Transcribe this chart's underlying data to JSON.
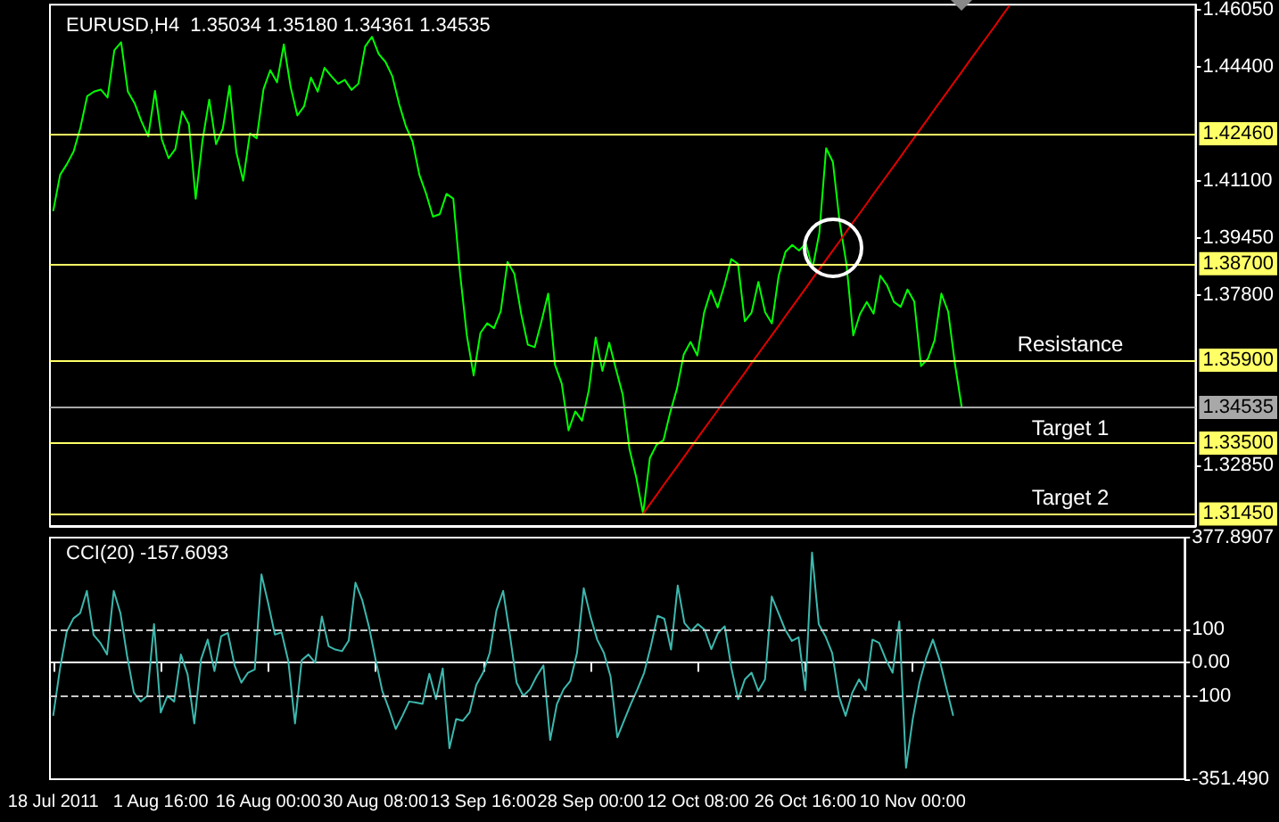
{
  "chart_data": [
    {
      "type": "line",
      "title": "EURUSD,H4  1.35034 1.35180 1.34361 1.34535",
      "categories": [
        null,
        null,
        null,
        null,
        null,
        null,
        null,
        null,
        null,
        null,
        null,
        null,
        null,
        null,
        null,
        null,
        null,
        null,
        null,
        null,
        null,
        null,
        null,
        null,
        null,
        null,
        null,
        null,
        null,
        null,
        null,
        null,
        null,
        null,
        null,
        null,
        null,
        null,
        null,
        null,
        null,
        null,
        null,
        null,
        null,
        null,
        null,
        null,
        null,
        null,
        null,
        null,
        null,
        null,
        null,
        null,
        null,
        null,
        null,
        null,
        null,
        null,
        null,
        null,
        null,
        null,
        null,
        null,
        null,
        null,
        null,
        null,
        null,
        null,
        null,
        null,
        null,
        null,
        null,
        null,
        null,
        null,
        null,
        null,
        null,
        null,
        null,
        null,
        null,
        null,
        null,
        null,
        null,
        null,
        null,
        null,
        null,
        null,
        null,
        null,
        null,
        null,
        null,
        null,
        null,
        null,
        null,
        null,
        null,
        null,
        null,
        null,
        null,
        null,
        null,
        null,
        null,
        null,
        null,
        null,
        null,
        null,
        null,
        null,
        null,
        null,
        null,
        null,
        null,
        null,
        null,
        null,
        null,
        null,
        null,
        null,
        null,
        null,
        null,
        null,
        null,
        null,
        null,
        null,
        null,
        null,
        null,
        null,
        null,
        null,
        null,
        null,
        null,
        null,
        null,
        null,
        null,
        null,
        null,
        null,
        null,
        null,
        null,
        null,
        null,
        null,
        null,
        null,
        null
      ],
      "series": [
        {
          "color": "#00ff00",
          "values": [
            1.4024,
            1.4127,
            1.4158,
            1.4195,
            1.4264,
            1.4355,
            1.4368,
            1.4374,
            1.4351,
            1.4488,
            1.4511,
            1.4368,
            1.4334,
            1.4282,
            1.4239,
            1.437,
            1.423,
            1.4175,
            1.4202,
            1.4311,
            1.4273,
            1.4058,
            1.4226,
            1.4345,
            1.4216,
            1.4261,
            1.4385,
            1.4192,
            1.411,
            1.4247,
            1.4233,
            1.4375,
            1.443,
            1.4395,
            1.4505,
            1.4382,
            1.4299,
            1.4326,
            1.4409,
            1.4368,
            1.4437,
            1.4413,
            1.4391,
            1.4402,
            1.4373,
            1.4391,
            1.4499,
            1.4527,
            1.4477,
            1.4454,
            1.4413,
            1.4333,
            1.4268,
            1.4223,
            1.4127,
            1.4072,
            1.4006,
            1.4013,
            1.4072,
            1.4058,
            1.3841,
            1.3662,
            1.3546,
            1.3669,
            1.3697,
            1.3683,
            1.3732,
            1.3875,
            1.3841,
            1.3726,
            1.3635,
            1.3628,
            1.3702,
            1.3783,
            1.3577,
            1.3522,
            1.3387,
            1.3442,
            1.3415,
            1.3504,
            1.3656,
            1.3559,
            1.3641,
            1.3564,
            1.349,
            1.3332,
            1.325,
            1.3146,
            1.3307,
            1.3346,
            1.3358,
            1.3439,
            1.3508,
            1.3607,
            1.3643,
            1.3604,
            1.3728,
            1.3792,
            1.3743,
            1.3808,
            1.3883,
            1.3869,
            1.3703,
            1.3728,
            1.3817,
            1.3729,
            1.3697,
            1.3835,
            1.3904,
            1.3924,
            1.3908,
            1.3928,
            1.3857,
            1.3959,
            1.4204,
            1.4164,
            1.3989,
            1.3869,
            1.3662,
            1.3724,
            1.3759,
            1.3725,
            1.3835,
            1.3807,
            1.3759,
            1.3745,
            1.3795,
            1.376,
            1.3573,
            1.3594,
            1.3648,
            1.3783,
            1.3731,
            1.358,
            1.3454,
            null,
            null,
            null,
            null,
            null,
            null,
            null,
            null,
            null,
            null,
            null,
            null,
            null,
            null,
            null,
            null,
            null,
            null,
            null,
            null,
            null,
            null,
            null,
            null,
            null,
            null,
            null,
            null,
            null,
            null,
            null,
            null,
            null,
            null
          ]
        },
        {
          "type": "line",
          "color": "#e00000",
          "values": [
            null,
            null,
            null,
            null,
            null,
            null,
            null,
            null,
            null,
            null,
            null,
            null,
            null,
            null,
            null,
            null,
            null,
            null,
            null,
            null,
            null,
            null,
            null,
            null,
            null,
            null,
            null,
            null,
            null,
            null,
            null,
            null,
            null,
            null,
            null,
            null,
            null,
            null,
            null,
            null,
            null,
            null,
            null,
            null,
            null,
            null,
            null,
            null,
            null,
            null,
            null,
            null,
            null,
            null,
            null,
            null,
            null,
            null,
            null,
            null,
            null,
            null,
            null,
            null,
            null,
            null,
            null,
            null,
            null,
            null,
            null,
            null,
            null,
            null,
            null,
            null,
            null,
            null,
            null,
            null,
            null,
            null,
            null,
            null,
            null,
            null,
            null,
            1.3146,
            1.3173,
            1.32,
            1.3228,
            1.3255,
            1.3282,
            1.3309,
            1.3337,
            1.3364,
            1.3391,
            1.3418,
            1.3445,
            1.3473,
            1.35,
            1.3527,
            1.3554,
            1.3582,
            1.3609,
            1.3636,
            1.3663,
            1.369,
            1.3718,
            1.3745,
            1.3772,
            1.3799,
            1.3827,
            1.3854,
            1.3881,
            1.3908,
            1.3935,
            1.3963,
            1.399,
            1.4017,
            1.4044,
            1.4072,
            1.4099,
            1.4126,
            1.4153,
            1.418,
            1.4208,
            1.4235,
            1.4262,
            1.4289,
            1.4317,
            1.4344,
            1.4371,
            1.4398,
            1.4425,
            1.4453,
            1.448,
            1.4507,
            1.4534,
            1.4561,
            1.4589,
            1.4616,
            null,
            null,
            null,
            null,
            null,
            null,
            null,
            null,
            null,
            null,
            null,
            null,
            null,
            null,
            null,
            null,
            null,
            null,
            null,
            null,
            null,
            null,
            null,
            null,
            null,
            null,
            null
          ]
        }
      ],
      "ylim": [
        1.311,
        1.462
      ],
      "yticks": [
        {
          "value": 1.4605,
          "label": "1.46050"
        },
        {
          "value": 1.444,
          "label": "1.44400"
        },
        {
          "value": 1.411,
          "label": "1.41100"
        },
        {
          "value": 1.3945,
          "label": "1.39450"
        },
        {
          "value": 1.378,
          "label": "1.37800"
        },
        {
          "value": 1.3285,
          "label": "1.32850"
        }
      ],
      "ref_lines": [
        {
          "axis": "y",
          "value": 1.4246,
          "label": "1.42460",
          "color": "#ffff66"
        },
        {
          "axis": "y",
          "value": 1.387,
          "label": "1.38700",
          "color": "#ffff66"
        },
        {
          "axis": "y",
          "value": 1.359,
          "label": "1.35900",
          "color": "#ffff66"
        },
        {
          "axis": "y",
          "value": 1.34535,
          "label": "1.34535",
          "color": "#a8a8a8"
        },
        {
          "axis": "y",
          "value": 1.335,
          "label": "1.33500",
          "color": "#ffff66"
        },
        {
          "axis": "y",
          "value": 1.3145,
          "label": "1.31450",
          "color": "#ffff66"
        }
      ],
      "annotations": [
        "Resistance",
        "Target 1",
        "Target 2"
      ],
      "tick_labels": "y"
    },
    {
      "type": "line",
      "title": "CCI(20) -157.6093",
      "categories": [
        "18 Jul 2011",
        null,
        null,
        null,
        null,
        null,
        null,
        null,
        null,
        null,
        null,
        null,
        null,
        null,
        null,
        null,
        "1 Aug 16:00",
        null,
        null,
        null,
        null,
        null,
        null,
        null,
        null,
        null,
        null,
        null,
        null,
        null,
        null,
        null,
        "16 Aug 00:00",
        null,
        null,
        null,
        null,
        null,
        null,
        null,
        null,
        null,
        null,
        null,
        null,
        null,
        null,
        null,
        "30 Aug 08:00",
        null,
        null,
        null,
        null,
        null,
        null,
        null,
        null,
        null,
        null,
        null,
        null,
        null,
        null,
        null,
        "13 Sep 16:00",
        null,
        null,
        null,
        null,
        null,
        null,
        null,
        null,
        null,
        null,
        null,
        null,
        null,
        null,
        null,
        "28 Sep 00:00",
        null,
        null,
        null,
        null,
        null,
        null,
        null,
        null,
        null,
        null,
        null,
        null,
        null,
        null,
        null,
        "12 Oct 08:00",
        null,
        null,
        null,
        null,
        null,
        null,
        null,
        null,
        null,
        null,
        null,
        null,
        null,
        null,
        null,
        "26 Oct 16:00",
        null,
        null,
        null,
        null,
        null,
        null,
        null,
        null,
        null,
        null,
        null,
        null,
        null,
        null,
        null,
        "10 Nov 00:00",
        null,
        null,
        null,
        null,
        null,
        null,
        null,
        null,
        null,
        null,
        null,
        null,
        null,
        null,
        null,
        null,
        null,
        null,
        null,
        null,
        null,
        null,
        null,
        null,
        null,
        null,
        null,
        null,
        null,
        null,
        null,
        null,
        null,
        null,
        null,
        null,
        null,
        null,
        null,
        null
      ],
      "series": [
        {
          "color": "#3cb8ae",
          "values": [
            -158,
            -17,
            94,
            134,
            150,
            217,
            84,
            60,
            25,
            217,
            150,
            20,
            -90,
            -117,
            -100,
            117,
            -150,
            -100,
            -117,
            25,
            -35,
            -183,
            10,
            70,
            -25,
            80,
            90,
            -8,
            -60,
            -30,
            -20,
            267,
            180,
            85,
            92,
            5,
            -183,
            8,
            25,
            0,
            140,
            50,
            40,
            35,
            67,
            242,
            190,
            110,
            10,
            -85,
            -140,
            -200,
            -160,
            -117,
            -120,
            -124,
            -33,
            -110,
            -17,
            -258,
            -170,
            -175,
            -150,
            -67,
            -30,
            30,
            158,
            217,
            84,
            -60,
            -100,
            -80,
            -40,
            -8,
            -233,
            -125,
            -80,
            -55,
            30,
            225,
            140,
            70,
            30,
            -42,
            -225,
            -175,
            -125,
            -80,
            -30,
            50,
            142,
            133,
            40,
            233,
            120,
            96,
            117,
            100,
            41,
            90,
            110,
            -17,
            -110,
            -50,
            -30,
            -85,
            -50,
            200,
            150,
            100,
            66,
            77,
            -83,
            333,
            117,
            80,
            30,
            -100,
            -160,
            -90,
            -50,
            -83,
            70,
            60,
            10,
            -30,
            125,
            -317,
            -170,
            -60,
            15,
            70,
            8,
            -75,
            -158,
            null,
            null,
            null,
            null,
            null,
            null,
            null,
            null,
            null,
            null,
            null,
            null,
            null,
            null,
            null,
            null,
            null,
            null,
            null,
            null,
            null,
            null,
            null,
            null,
            null,
            null,
            null,
            null,
            null,
            null,
            null,
            null,
            null,
            null
          ]
        }
      ],
      "ylim": [
        -351.49,
        377.8907
      ],
      "yticks": [
        {
          "value": 377.8907,
          "label": "377.8907"
        },
        100,
        {
          "value": 0,
          "label": "0.00"
        },
        -100,
        {
          "value": -351.49,
          "label": "-351.490"
        }
      ],
      "ref_lines": [
        {
          "axis": "y",
          "value": 100,
          "label": null,
          "color": "#c8c8c8",
          "line_style": "dashed"
        },
        {
          "axis": "y",
          "value": -100,
          "label": null,
          "color": "#c8c8c8",
          "line_style": "dashed"
        }
      ]
    }
  ]
}
